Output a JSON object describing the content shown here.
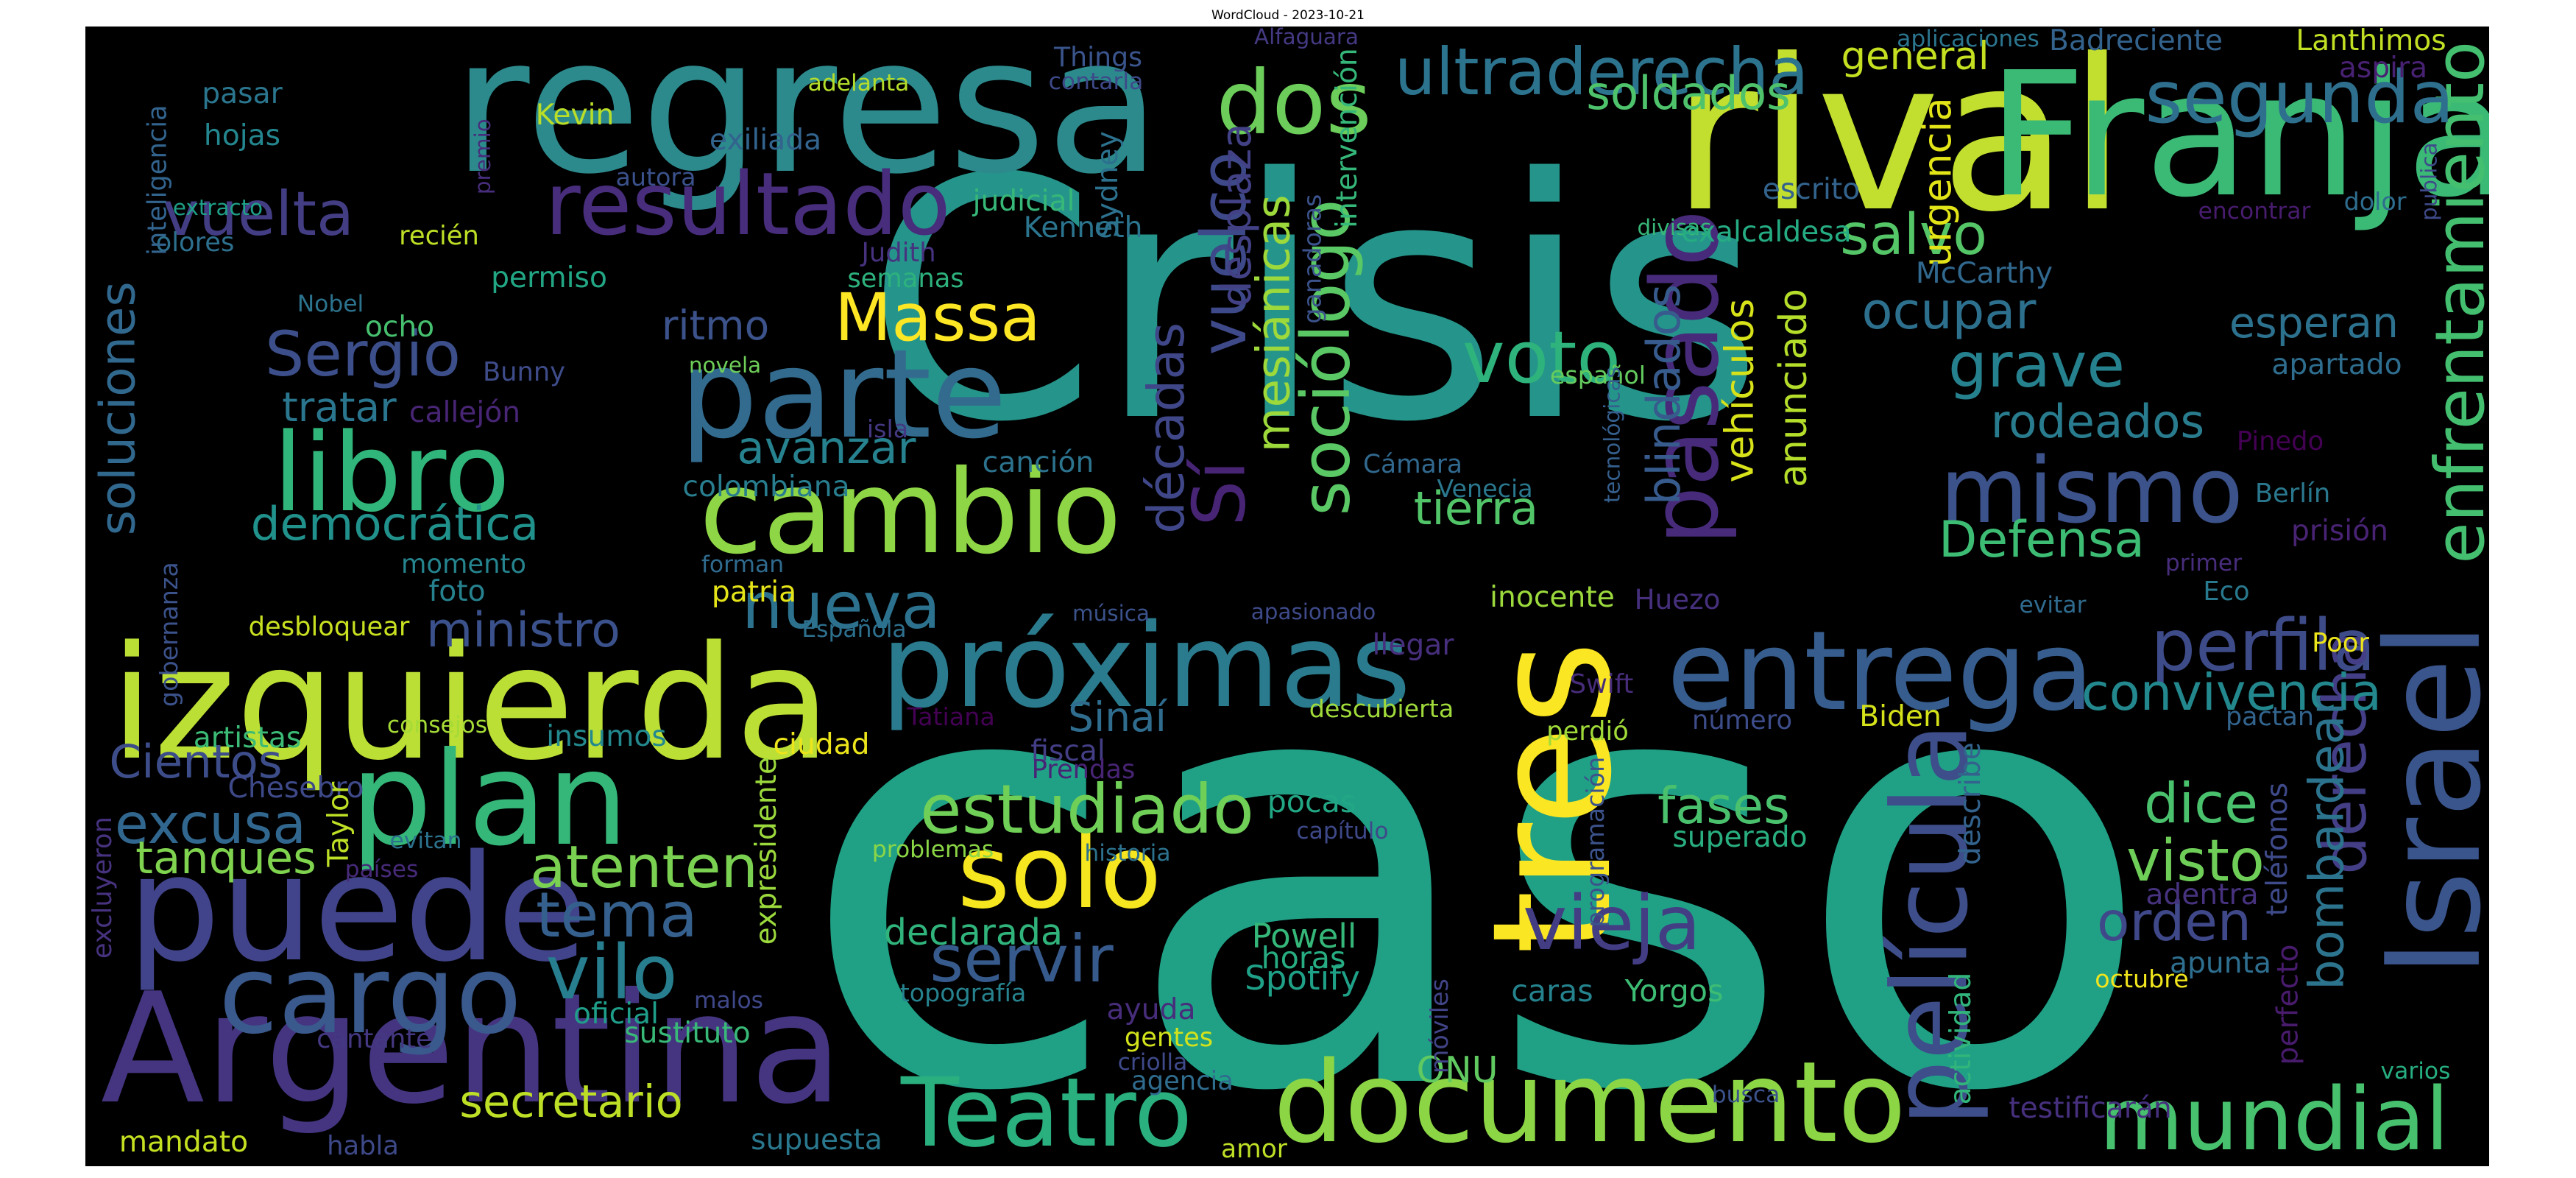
{
  "title": "WordCloud - 2023-10-21",
  "words": [
    {
      "text": "Crisis",
      "color": "#25958b"
    },
    {
      "text": "caso",
      "color": "#20a186"
    },
    {
      "text": "regresa",
      "color": "#2c8a8d"
    },
    {
      "text": "rival",
      "color": "#c2df2f"
    },
    {
      "text": "Franja",
      "color": "#3bba76"
    },
    {
      "text": "Argentina",
      "color": "#453581"
    },
    {
      "text": "izquierda",
      "color": "#bcdf36"
    },
    {
      "text": "documento",
      "color": "#8cd646"
    },
    {
      "text": "puede",
      "color": "#41448a"
    },
    {
      "text": "plan",
      "color": "#35b779"
    },
    {
      "text": "Israel",
      "color": "#3a548c"
    },
    {
      "text": "próximas",
      "color": "#2b7b8e"
    },
    {
      "text": "tres",
      "color": "#fae622"
    },
    {
      "text": "parte",
      "color": "#326b8e"
    },
    {
      "text": "cambio",
      "color": "#8ed645"
    },
    {
      "text": "mundial",
      "color": "#47c16e"
    },
    {
      "text": "cargo",
      "color": "#3a598c"
    },
    {
      "text": "película",
      "color": "#3d4e8a"
    },
    {
      "text": "entrega",
      "color": "#365d8d"
    },
    {
      "text": "solo",
      "color": "#f6e620"
    },
    {
      "text": "libro",
      "color": "#30b57a"
    },
    {
      "text": "mismo",
      "color": "#3c528b"
    },
    {
      "text": "pasado",
      "color": "#472b7a"
    },
    {
      "text": "Teatro",
      "color": "#2ab07f"
    },
    {
      "text": "resultado",
      "color": "#472d7b"
    },
    {
      "text": "dos",
      "color": "#6ccd5a"
    },
    {
      "text": "estudiado",
      "color": "#70cf57"
    },
    {
      "text": "perfila",
      "color": "#3e4b89"
    },
    {
      "text": "enfrentamiento",
      "color": "#44bf70"
    },
    {
      "text": "segunda",
      "color": "#2e6f8e"
    },
    {
      "text": "ultraderecha",
      "color": "#2c738e"
    },
    {
      "text": "vieja",
      "color": "#433d84"
    },
    {
      "text": "Sí",
      "color": "#482475"
    },
    {
      "text": "nueva",
      "color": "#2c728e"
    },
    {
      "text": "sociólogo",
      "color": "#5ac864"
    },
    {
      "text": "voto",
      "color": "#2eb37c"
    },
    {
      "text": "vilo",
      "color": "#277e8e"
    },
    {
      "text": "Massa",
      "color": "#fde725"
    },
    {
      "text": "atenten",
      "color": "#7ad151"
    },
    {
      "text": "Sergio",
      "color": "#3c4f8a"
    },
    {
      "text": "servir",
      "color": "#375a8c"
    },
    {
      "text": "derecha",
      "color": "#433e85"
    },
    {
      "text": "vuelta",
      "color": "#433d84"
    },
    {
      "text": "tema",
      "color": "#35608d"
    },
    {
      "text": "dice",
      "color": "#4ac16d"
    },
    {
      "text": "grave",
      "color": "#26818e"
    },
    {
      "text": "mesiánicas",
      "color": "#9dd93b"
    },
    {
      "text": "excusa",
      "color": "#31678e"
    },
    {
      "text": "visto",
      "color": "#6ece58"
    },
    {
      "text": "salvo",
      "color": "#55c667"
    },
    {
      "text": "vuelco",
      "color": "#3e4989"
    },
    {
      "text": "Defensa",
      "color": "#3dbc74"
    },
    {
      "text": "convivencia",
      "color": "#23888e"
    },
    {
      "text": "fases",
      "color": "#4ac16d"
    },
    {
      "text": "bombardear",
      "color": "#2c738e"
    },
    {
      "text": "orden",
      "color": "#3f4889"
    },
    {
      "text": "esperan",
      "color": "#2c718e"
    },
    {
      "text": "democrática",
      "color": "#21918c"
    },
    {
      "text": "ocupar",
      "color": "#2d708e"
    },
    {
      "text": "rodeados",
      "color": "#287c8e"
    },
    {
      "text": "ministro",
      "color": "#3b518b"
    },
    {
      "text": "tanques",
      "color": "#7fd34e"
    },
    {
      "text": "secretario",
      "color": "#bddf26"
    },
    {
      "text": "soldados",
      "color": "#4ec36b"
    },
    {
      "text": "Cientos",
      "color": "#3d4d8a"
    },
    {
      "text": "décadas",
      "color": "#3f4788"
    },
    {
      "text": "soluciones",
      "color": "#31688e"
    },
    {
      "text": "tierra",
      "color": "#52c569"
    },
    {
      "text": "avanzar",
      "color": "#26828e"
    },
    {
      "text": "blindados",
      "color": "#375b8d"
    },
    {
      "text": "vehículos",
      "color": "#d8e219"
    },
    {
      "text": "anunciado",
      "color": "#b5de2b"
    },
    {
      "text": "tratar",
      "color": "#2a768e"
    },
    {
      "text": "Sinaí",
      "color": "#2f6c8e"
    },
    {
      "text": "ritmo",
      "color": "#3b528b"
    },
    {
      "text": "desplaza",
      "color": "#424186"
    },
    {
      "text": "general",
      "color": "#c5e021"
    },
    {
      "text": "urgencia",
      "color": "#e2e418"
    },
    {
      "text": "declarada",
      "color": "#30b47c"
    },
    {
      "text": "Powell",
      "color": "#35b779"
    },
    {
      "text": "Spotify",
      "color": "#1fa188"
    },
    {
      "text": "horas",
      "color": "#27ad81"
    },
    {
      "text": "caras",
      "color": "#25838e"
    },
    {
      "text": "Yorgos",
      "color": "#3dbc74"
    },
    {
      "text": "ONU",
      "color": "#60ca60"
    },
    {
      "text": "pocas",
      "color": "#22a785"
    },
    {
      "text": "superado",
      "color": "#29af7f"
    },
    {
      "text": "adentra",
      "color": "#46327e"
    },
    {
      "text": "apunta",
      "color": "#2e6e8e"
    },
    {
      "text": "octubre",
      "color": "#f1e51d"
    },
    {
      "text": "testificarán",
      "color": "#46307e"
    },
    {
      "text": "varios",
      "color": "#26ad81"
    },
    {
      "text": "busca",
      "color": "#3b528b"
    },
    {
      "text": "actividad",
      "color": "#31b57b"
    },
    {
      "text": "describe",
      "color": "#33638d"
    },
    {
      "text": "teléfonos",
      "color": "#3e4a89"
    },
    {
      "text": "perfecto",
      "color": "#481b6d"
    },
    {
      "text": "pactan",
      "color": "#32648e"
    },
    {
      "text": "Biden",
      "color": "#d5e21a"
    },
    {
      "text": "número",
      "color": "#3d4d8a"
    },
    {
      "text": "perdió",
      "color": "#a0da39"
    },
    {
      "text": "Swift",
      "color": "#472c7a"
    },
    {
      "text": "Huezo",
      "color": "#46307e"
    },
    {
      "text": "inocente",
      "color": "#9bd93c"
    },
    {
      "text": "Eco",
      "color": "#29798e"
    },
    {
      "text": "evitar",
      "color": "#2f6b8e"
    },
    {
      "text": "primer",
      "color": "#472d7b"
    },
    {
      "text": "Poor",
      "color": "#ece51b"
    },
    {
      "text": "prisión",
      "color": "#482374"
    },
    {
      "text": "Berlín",
      "color": "#2a788e"
    },
    {
      "text": "Pinedo",
      "color": "#440154"
    },
    {
      "text": "apartado",
      "color": "#2e6d8e"
    },
    {
      "text": "español",
      "color": "#65cb5e"
    },
    {
      "text": "Venecia",
      "color": "#2a778e"
    },
    {
      "text": "Cámara",
      "color": "#31688e"
    },
    {
      "text": "tecnológicas",
      "color": "#355f8d"
    },
    {
      "text": "descubierta",
      "color": "#9fda3a"
    },
    {
      "text": "llegar",
      "color": "#472f7d"
    },
    {
      "text": "apasionado",
      "color": "#3e4a89"
    },
    {
      "text": "música",
      "color": "#3b528b"
    },
    {
      "text": "canción",
      "color": "#2c738e"
    },
    {
      "text": "colombiana",
      "color": "#287d8e"
    },
    {
      "text": "isla",
      "color": "#453882"
    },
    {
      "text": "novela",
      "color": "#6ece58"
    },
    {
      "text": "semanas",
      "color": "#2db27d"
    },
    {
      "text": "Judith",
      "color": "#46327e"
    },
    {
      "text": "Kenneth",
      "color": "#2b748e"
    },
    {
      "text": "judicial",
      "color": "#37b878"
    },
    {
      "text": "recién",
      "color": "#bddf26"
    },
    {
      "text": "permiso",
      "color": "#22a785"
    },
    {
      "text": "callejón",
      "color": "#482575"
    },
    {
      "text": "Bunny",
      "color": "#3e4c8a"
    },
    {
      "text": "ocho",
      "color": "#46c06f"
    },
    {
      "text": "Nobel",
      "color": "#2c738e"
    },
    {
      "text": "olores",
      "color": "#2d708e"
    },
    {
      "text": "inteligencia",
      "color": "#32648e"
    },
    {
      "text": "extracto",
      "color": "#1fa088"
    },
    {
      "text": "hojas",
      "color": "#24868e"
    },
    {
      "text": "pasar",
      "color": "#2a768e"
    },
    {
      "text": "premio",
      "color": "#472d7b"
    },
    {
      "text": "autora",
      "color": "#3b518b"
    },
    {
      "text": "Kevin",
      "color": "#bade28"
    },
    {
      "text": "exiliada",
      "color": "#32648e"
    },
    {
      "text": "adelanta",
      "color": "#b5de2b"
    },
    {
      "text": "Things",
      "color": "#3a548c"
    },
    {
      "text": "contarla",
      "color": "#3e4989"
    },
    {
      "text": "Sydney",
      "color": "#2c718e"
    },
    {
      "text": "Alfaguara",
      "color": "#443a83"
    },
    {
      "text": "intervención",
      "color": "#35b779"
    },
    {
      "text": "ganadoras",
      "color": "#3b528b"
    },
    {
      "text": "divisas",
      "color": "#37b878"
    },
    {
      "text": "exalcaldesa",
      "color": "#25ac82"
    },
    {
      "text": "escrito",
      "color": "#33638d"
    },
    {
      "text": "encontrar",
      "color": "#481c6e"
    },
    {
      "text": "McCarthy",
      "color": "#31688e"
    },
    {
      "text": "dolor",
      "color": "#2e6d8e"
    },
    {
      "text": "aspira",
      "color": "#482173"
    },
    {
      "text": "publica",
      "color": "#3e4a89"
    },
    {
      "text": "Lanthimos",
      "color": "#c2df23"
    },
    {
      "text": "Badreciente",
      "color": "#33638d"
    },
    {
      "text": "aplicaciones",
      "color": "#2b758e"
    },
    {
      "text": "desbloquear",
      "color": "#c8e020"
    },
    {
      "text": "momento",
      "color": "#25848e"
    },
    {
      "text": "foto",
      "color": "#26818e"
    },
    {
      "text": "forman",
      "color": "#2f6b8e"
    },
    {
      "text": "patria",
      "color": "#e5e419"
    },
    {
      "text": "Española",
      "color": "#2d708e"
    },
    {
      "text": "gobernanza",
      "color": "#3b528b"
    },
    {
      "text": "artistas",
      "color": "#3bbb75"
    },
    {
      "text": "consejos",
      "color": "#a5db36"
    },
    {
      "text": "insumos",
      "color": "#23898e"
    },
    {
      "text": "Chesebro",
      "color": "#3e4989"
    },
    {
      "text": "Taylor",
      "color": "#bddf26"
    },
    {
      "text": "ciudad",
      "color": "#ece51b"
    },
    {
      "text": "fiscal",
      "color": "#433e85"
    },
    {
      "text": "Prendas",
      "color": "#482475"
    },
    {
      "text": "Tatiana",
      "color": "#440154"
    },
    {
      "text": "expresidente",
      "color": "#9bd93c"
    },
    {
      "text": "problemas",
      "color": "#8bd646"
    },
    {
      "text": "historia",
      "color": "#2c728e"
    },
    {
      "text": "capítulo",
      "color": "#3e4989"
    },
    {
      "text": "evitan",
      "color": "#2c728e"
    },
    {
      "text": "países",
      "color": "#472a7a"
    },
    {
      "text": "excluyeron",
      "color": "#46327e"
    },
    {
      "text": "malos",
      "color": "#3f4889"
    },
    {
      "text": "oficial",
      "color": "#1f9e89"
    },
    {
      "text": "sustituto",
      "color": "#38b977"
    },
    {
      "text": "cantante",
      "color": "#453882"
    },
    {
      "text": "topografía",
      "color": "#26828e"
    },
    {
      "text": "ayuda",
      "color": "#472d7b"
    },
    {
      "text": "gentes",
      "color": "#d2e21b"
    },
    {
      "text": "criolla",
      "color": "#3e4a89"
    },
    {
      "text": "agencia",
      "color": "#2f6c8e"
    },
    {
      "text": "móviles",
      "color": "#414487"
    },
    {
      "text": "programación",
      "color": "#3b528b"
    },
    {
      "text": "mandato",
      "color": "#c5e021"
    },
    {
      "text": "habla",
      "color": "#3e4989"
    },
    {
      "text": "supuesta",
      "color": "#2a788e"
    },
    {
      "text": "amor",
      "color": "#bddf26"
    }
  ]
}
